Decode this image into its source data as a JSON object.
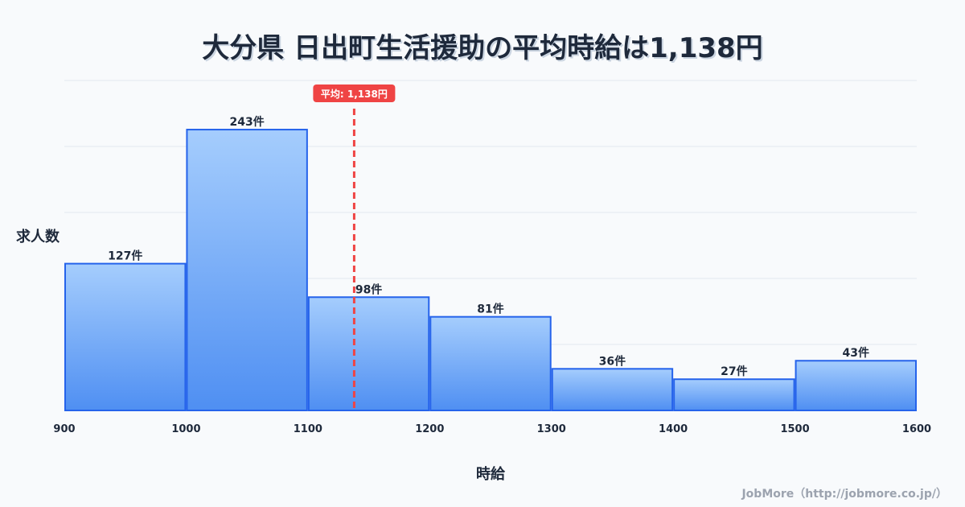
{
  "chart_data": {
    "type": "bar",
    "title": "大分県 日出町生活援助の平均時給は1,138円",
    "xlabel": "時給",
    "ylabel": "求人数",
    "bins": [
      [
        900,
        1000
      ],
      [
        1000,
        1100
      ],
      [
        1100,
        1200
      ],
      [
        1200,
        1300
      ],
      [
        1300,
        1400
      ],
      [
        1400,
        1500
      ],
      [
        1500,
        1600
      ]
    ],
    "values": [
      127,
      243,
      98,
      81,
      36,
      27,
      43
    ],
    "data_labels": [
      "127件",
      "243件",
      "98件",
      "81件",
      "36件",
      "27件",
      "43件"
    ],
    "x_ticks": [
      "900",
      "1000",
      "1100",
      "1200",
      "1300",
      "1400",
      "1500",
      "1600"
    ],
    "xlim": [
      900,
      1600
    ],
    "ylim": [
      0,
      285.5
    ],
    "grid": true,
    "mean": 1138,
    "mean_label": "平均: 1,138円",
    "colors": {
      "bar_top": "#a5cdfd",
      "bar_bottom": "#4f8ff2",
      "bar_stroke": "#2563eb",
      "mean": "#ef4444"
    }
  },
  "credit": "JobMore（http://jobmore.co.jp/）"
}
